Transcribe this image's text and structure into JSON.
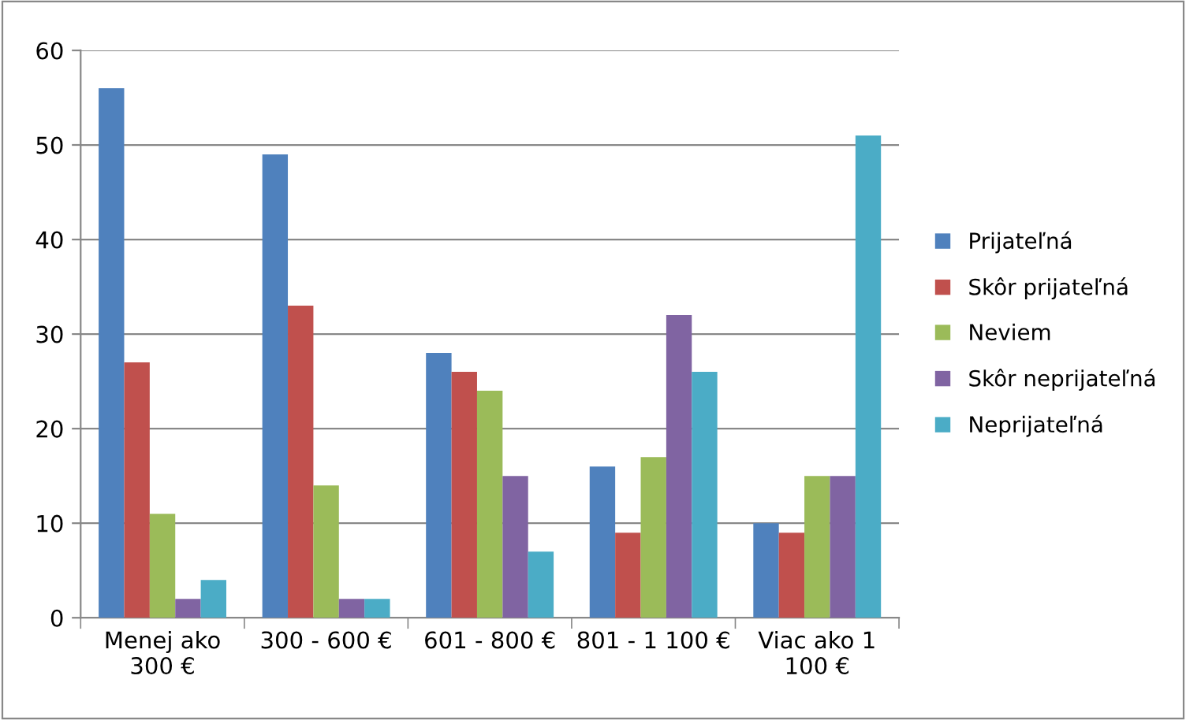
{
  "chart_data": {
    "type": "bar",
    "categories": [
      "Menej ako\n300 €",
      "300 - 600 €",
      "601 - 800 €",
      "801 - 1 100 €",
      "Viac ako 1\n100 €"
    ],
    "series": [
      {
        "name": "Prijateľná",
        "color": "#4f81bd",
        "values": [
          56,
          49,
          28,
          16,
          10
        ]
      },
      {
        "name": "Skôr prijateľná",
        "color": "#c0504d",
        "values": [
          27,
          33,
          26,
          9,
          9
        ]
      },
      {
        "name": "Neviem",
        "color": "#9bbb59",
        "values": [
          11,
          14,
          24,
          17,
          15
        ]
      },
      {
        "name": "Skôr neprijateľná",
        "color": "#8064a2",
        "values": [
          2,
          2,
          15,
          32,
          15
        ]
      },
      {
        "name": "Neprijateľná",
        "color": "#4bacc6",
        "values": [
          4,
          2,
          7,
          26,
          51
        ]
      }
    ],
    "ylim": [
      0,
      60
    ],
    "yticks": [
      0,
      10,
      20,
      30,
      40,
      50,
      60
    ],
    "grid": "y",
    "legend": "right"
  }
}
